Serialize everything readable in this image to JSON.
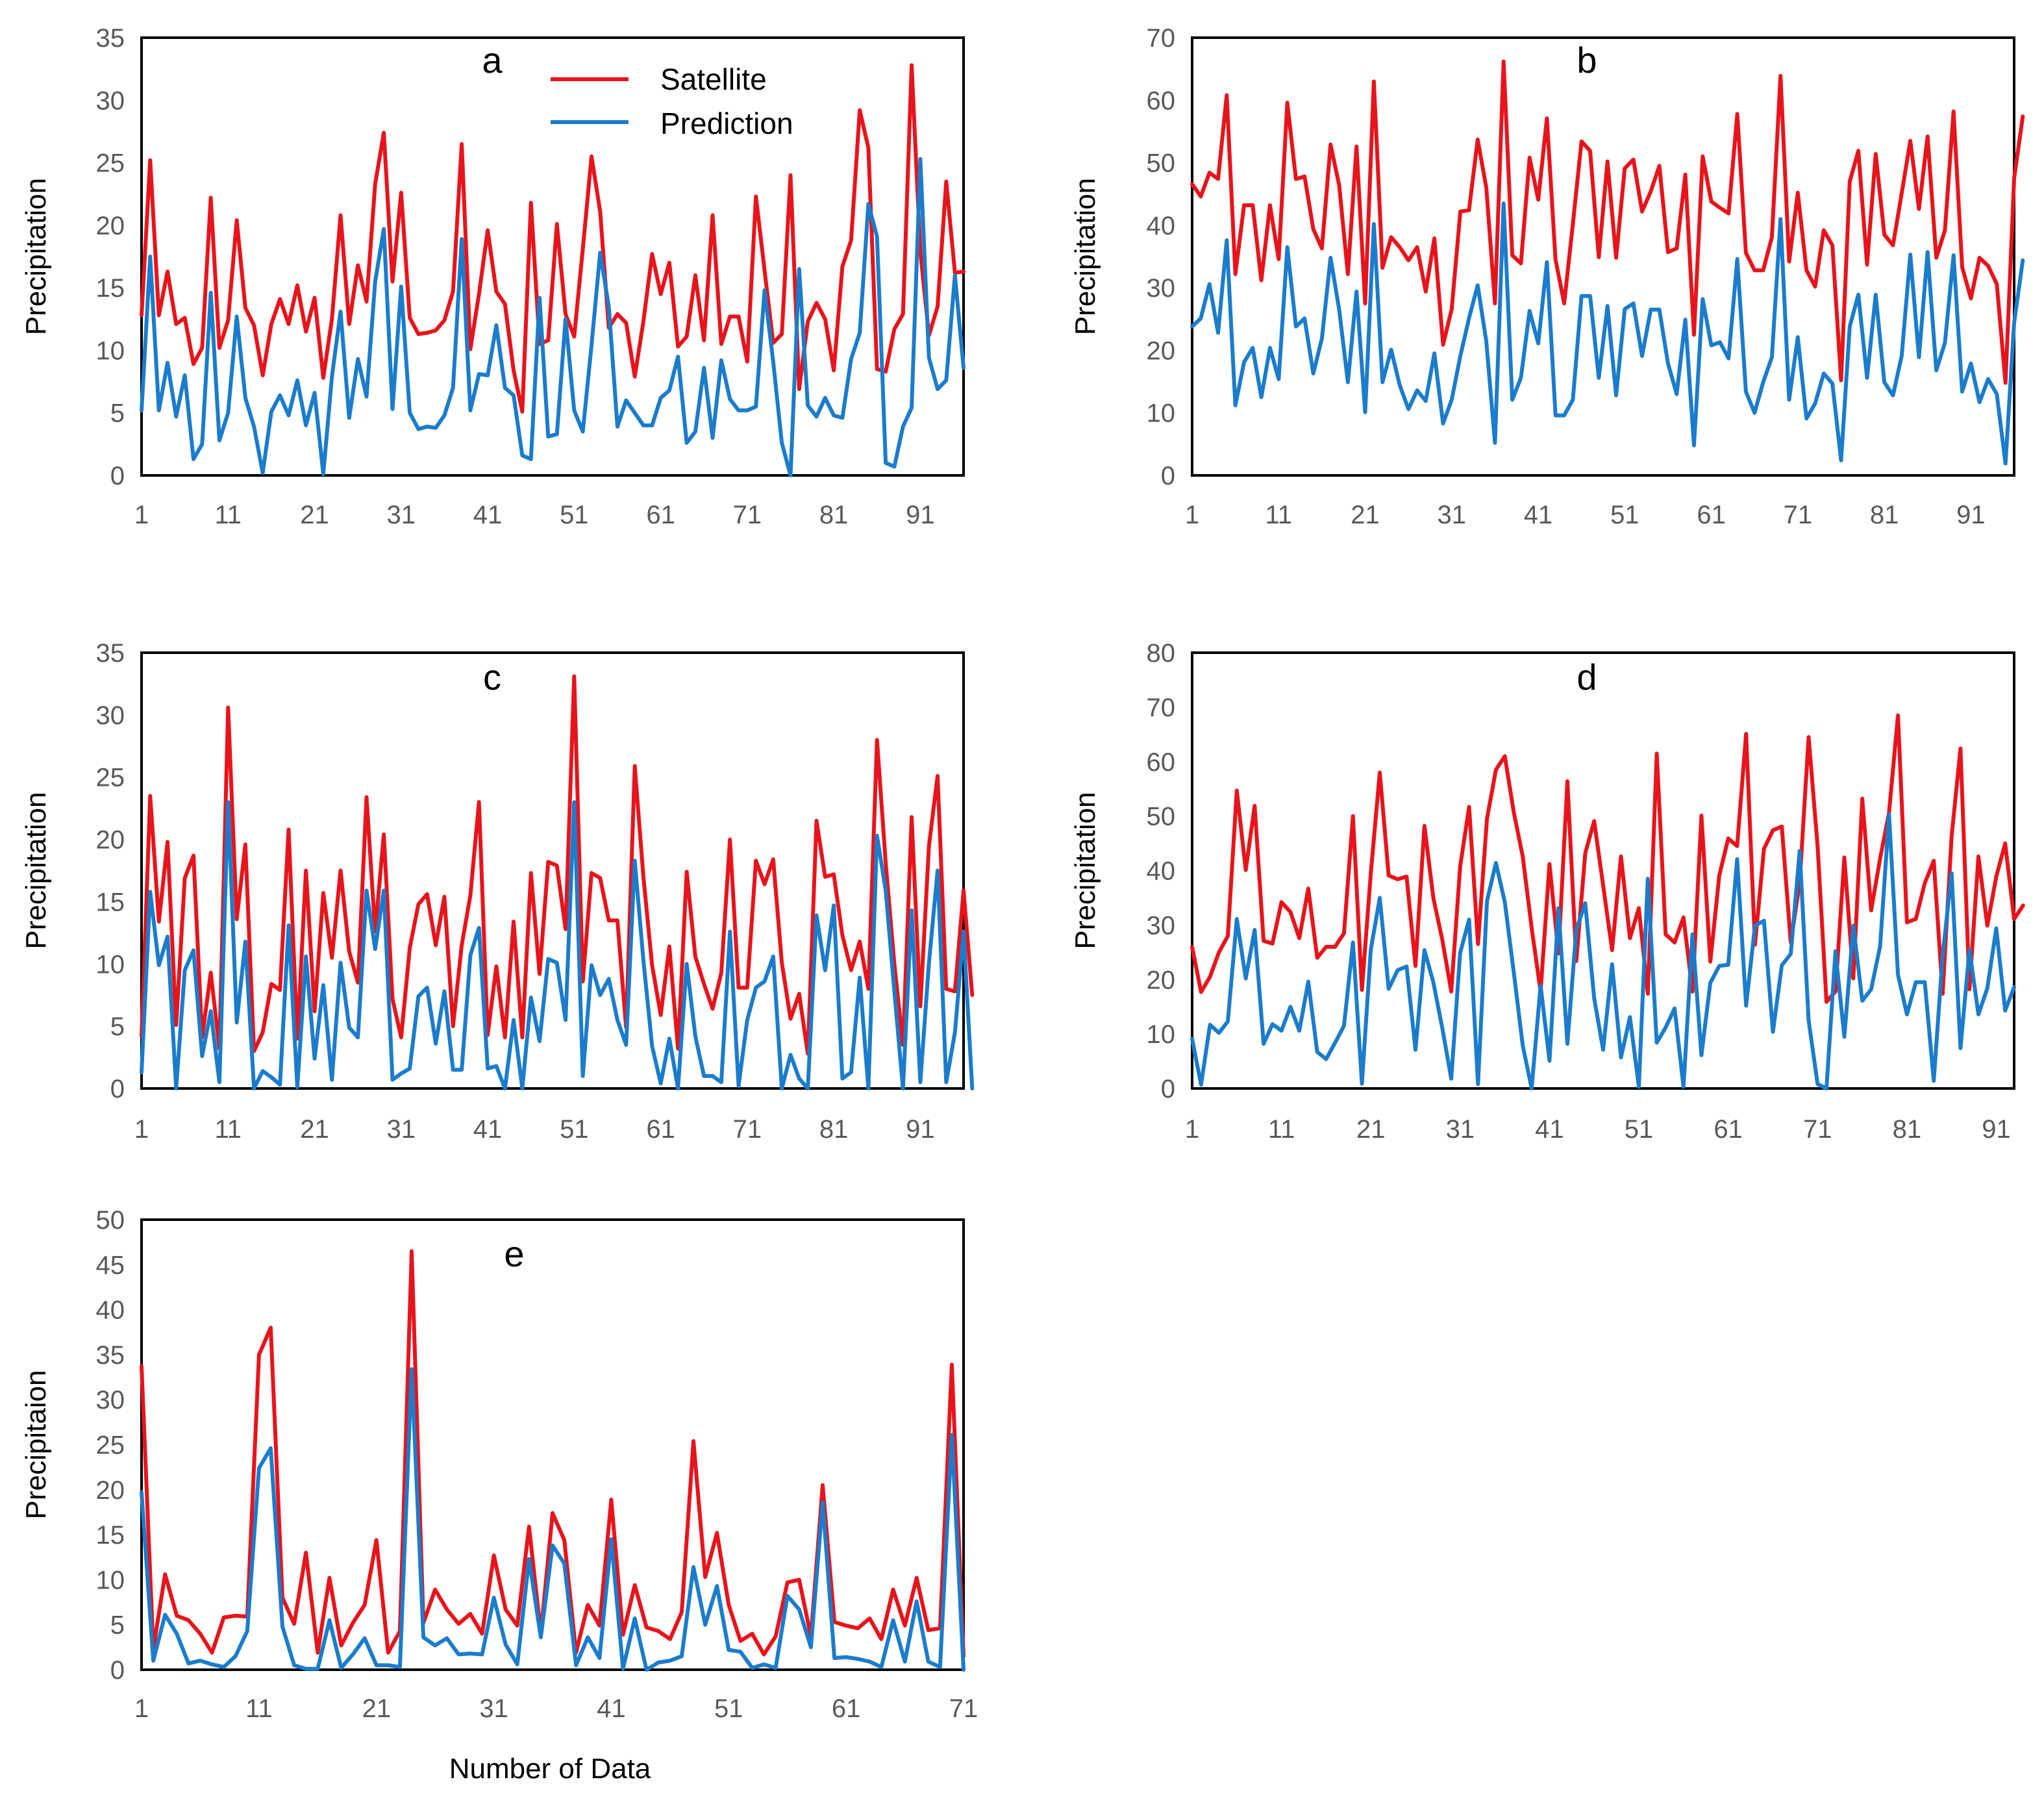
{
  "colors": {
    "satellite": "#e8141b",
    "prediction": "#1b7ccc",
    "tick": "#595959"
  },
  "legend": {
    "satellite": "Satellite",
    "prediction": "Prediction"
  },
  "x_axis_title": "Number of Data",
  "chart_data": [
    {
      "type": "line",
      "panel": "a",
      "ylabel": "Precipitation",
      "ylim": [
        0,
        35
      ],
      "yticks": [
        "0",
        "5",
        "10",
        "15",
        "20",
        "25",
        "30",
        "35"
      ],
      "xlim": [
        1,
        96
      ],
      "xticks": [
        "1",
        "11",
        "21",
        "31",
        "41",
        "51",
        "61",
        "71",
        "81",
        "91"
      ],
      "series": [
        {
          "name": "Satellite",
          "values": [
            12.8,
            25.2,
            12.8,
            16.3,
            12.1,
            12.6,
            8.9,
            10.2,
            22.2,
            10.2,
            12.4,
            20.4,
            13.4,
            12,
            8,
            12.1,
            14.1,
            12.1,
            15.2,
            11.5,
            14.2,
            7.8,
            12.5,
            20.8,
            12.1,
            16.8,
            13.9,
            23.3,
            27.4,
            15.5,
            22.6,
            12.6,
            11.3,
            11.4,
            11.6,
            12.4,
            14.7,
            26.5,
            10.1,
            14.5,
            19.6,
            14.7,
            13.7,
            8.4,
            5.1,
            21.8,
            10.5,
            10.8,
            20.1,
            12.9,
            11.1,
            18.1,
            25.5,
            21.1,
            11.8,
            12.9,
            12.2,
            7.9,
            12.3,
            17.7,
            14.5,
            17,
            10.3,
            11.1,
            16,
            10.8,
            20.8,
            10.5,
            12.7,
            12.7,
            9.1,
            22.3,
            16.4,
            10.6,
            11.3,
            24,
            6.9,
            12.3,
            13.8,
            12.5,
            8.4,
            16.7,
            18.8,
            29.2,
            26.2,
            8.5,
            8.3,
            11.7,
            12.9,
            32.8,
            17.9,
            11.2,
            13.5,
            23.5,
            16.2,
            16.3
          ]
        },
        {
          "name": "Prediction",
          "values": [
            5.2,
            17.5,
            5.2,
            9,
            4.7,
            8,
            1.3,
            2.5,
            14.6,
            2.8,
            5,
            12.7,
            6.2,
            3.9,
            0.2,
            5.1,
            6.4,
            4.8,
            7.6,
            4,
            6.6,
            0.1,
            7.9,
            13.1,
            4.6,
            9.3,
            6.3,
            15.5,
            19.7,
            5.3,
            15.1,
            5,
            3.7,
            3.9,
            3.8,
            4.8,
            7,
            18.9,
            5.2,
            8.1,
            8,
            12,
            7,
            6.4,
            1.6,
            1.3,
            14.2,
            3.1,
            3.3,
            12.5,
            5.2,
            3.5,
            10.4,
            17.8,
            13.5,
            3.9,
            6,
            5,
            4,
            4,
            6.2,
            6.8,
            9.5,
            2.6,
            3.5,
            8.6,
            3,
            9.2,
            6.1,
            5.2,
            5.2,
            5.5,
            14.8,
            9.1,
            2.6,
            0,
            16.5,
            5.6,
            4.7,
            6.2,
            4.8,
            4.6,
            9.3,
            11.4,
            21.7,
            19.1,
            1,
            0.7,
            3.9,
            5.4,
            25.3,
            9.4,
            6.9,
            7.6,
            16,
            8.6
          ]
        }
      ]
    },
    {
      "type": "line",
      "panel": "b",
      "ylabel": "Precipitation",
      "ylim": [
        0,
        70
      ],
      "yticks": [
        "0",
        "10",
        "20",
        "30",
        "40",
        "50",
        "60",
        "70"
      ],
      "xlim": [
        1,
        96
      ],
      "xticks": [
        "1",
        "11",
        "21",
        "31",
        "41",
        "51",
        "61",
        "71",
        "81",
        "91"
      ],
      "series": [
        {
          "name": "Satellite",
          "values": [
            46.6,
            44.6,
            48.4,
            47.4,
            60.8,
            32.2,
            43.2,
            43.2,
            31.2,
            43.2,
            34.6,
            59.6,
            47.4,
            47.8,
            39.4,
            36.3,
            52.9,
            46.4,
            32.2,
            52.6,
            27.5,
            63,
            33.2,
            38.1,
            36.5,
            34.4,
            36.5,
            29.4,
            37.9,
            20.9,
            26.6,
            42.2,
            42.4,
            53.7,
            46,
            27.5,
            66.2,
            35.2,
            33.9,
            50.8,
            44.1,
            57.1,
            34.5,
            27.5,
            40.2,
            53.4,
            51.9,
            34.9,
            50.2,
            34.8,
            49.1,
            50.5,
            42.2,
            45.4,
            49.5,
            35.7,
            36.3,
            48.1,
            22.5,
            51,
            43.8,
            42.8,
            41.9,
            57.8,
            35.6,
            32.8,
            32.8,
            38.1,
            63.9,
            34.2,
            45.2,
            32.8,
            30.2,
            39.2,
            36.8,
            15.2,
            47,
            51.9,
            33.7,
            51.4,
            38.5,
            36.8,
            45.1,
            53.5,
            42.6,
            54.2,
            34.8,
            39.2,
            58.2,
            33.3,
            28.3,
            34.8,
            33.5,
            30.6,
            14.8,
            47.5,
            57.4
          ]
        },
        {
          "name": "Prediction",
          "values": [
            23.8,
            25.1,
            30.6,
            22.8,
            37.6,
            11.2,
            18.1,
            20.4,
            12.5,
            20.4,
            15.4,
            36.5,
            23.8,
            25.1,
            16.3,
            21.9,
            34.8,
            26.5,
            14.9,
            29.4,
            10.1,
            40.2,
            14.9,
            20.1,
            14.4,
            10.6,
            13.6,
            11.9,
            19.5,
            8.3,
            12.1,
            19.1,
            25.1,
            30.4,
            21.4,
            5.2,
            43.5,
            12.1,
            15.6,
            26.3,
            21.1,
            34.1,
            9.6,
            9.6,
            12.1,
            28.7,
            28.7,
            15.6,
            27.1,
            12.8,
            26.6,
            27.5,
            19.1,
            26.5,
            26.5,
            17.9,
            13,
            24.9,
            4.8,
            28.2,
            20.8,
            21.3,
            18.7,
            34.6,
            13.4,
            10,
            14.9,
            18.9,
            41,
            12.1,
            22.1,
            9.1,
            11.5,
            16.3,
            14.7,
            2.4,
            23.8,
            28.9,
            15.6,
            28.9,
            14.9,
            12.8,
            19.1,
            35.3,
            18.9,
            35.7,
            16.8,
            21.2,
            35.2,
            13.4,
            17.9,
            11.7,
            15.4,
            13,
            1.9,
            24.4,
            34.4
          ]
        }
      ]
    },
    {
      "type": "line",
      "panel": "c",
      "ylabel": "Precipitation",
      "ylim": [
        0,
        35
      ],
      "yticks": [
        "0",
        "5",
        "10",
        "15",
        "20",
        "25",
        "30",
        "35"
      ],
      "xlim": [
        1,
        96
      ],
      "xticks": [
        "1",
        "11",
        "21",
        "31",
        "41",
        "51",
        "61",
        "71",
        "81",
        "91"
      ],
      "series": [
        {
          "name": "Satellite",
          "values": [
            4.2,
            23.5,
            13.4,
            19.8,
            5.1,
            16.9,
            18.7,
            4.1,
            9.3,
            3.2,
            30.6,
            13.6,
            19.6,
            3,
            4.5,
            8.4,
            7.9,
            20.8,
            4,
            17.5,
            6.2,
            15.7,
            10.5,
            17.5,
            11,
            8.5,
            23.4,
            12.6,
            20.4,
            7.2,
            4.1,
            11.3,
            14.8,
            15.6,
            11.5,
            15.4,
            5,
            11.5,
            15.5,
            23,
            4.3,
            9.8,
            4.1,
            13.4,
            4.1,
            17.3,
            9.2,
            18.2,
            17.9,
            12.8,
            33.1,
            8.6,
            17.3,
            16.9,
            13.5,
            13.5,
            4.9,
            25.9,
            17,
            9.9,
            5.9,
            11.4,
            3.2,
            17.4,
            10.6,
            8.4,
            6.4,
            9.3,
            20,
            8.1,
            8.1,
            18.3,
            16.4,
            18.4,
            10.1,
            5.6,
            7.6,
            2.8,
            21.5,
            17,
            17.2,
            12.3,
            9.5,
            11.8,
            8,
            28,
            18.1,
            10,
            3.5,
            21.8,
            6.6,
            19.5,
            25.1,
            8,
            7.8,
            15.9,
            7.5
          ]
        },
        {
          "name": "Prediction",
          "values": [
            1.3,
            15.8,
            9.9,
            12.2,
            0,
            9.5,
            11.1,
            2.6,
            6.2,
            0.5,
            23,
            5.3,
            11.8,
            0,
            1.4,
            0.9,
            0.3,
            13.1,
            0.1,
            10.6,
            2.4,
            8.3,
            0.7,
            10.1,
            4.9,
            4.1,
            15.9,
            11.2,
            15.9,
            0.7,
            1.2,
            1.6,
            7.4,
            8.1,
            3.6,
            7.8,
            1.5,
            1.5,
            10.7,
            12.9,
            1.6,
            1.8,
            0,
            5.5,
            0,
            7.3,
            3.8,
            10.4,
            10.1,
            5.5,
            23,
            1,
            9.9,
            7.5,
            8.8,
            5.5,
            3.5,
            18.3,
            10.3,
            3.4,
            0.4,
            4,
            0,
            10,
            4.2,
            1,
            1,
            0.5,
            12.6,
            0.2,
            5.5,
            8.1,
            8.6,
            10.6,
            0,
            2.7,
            0.8,
            0,
            13.9,
            9.5,
            14.7,
            0.8,
            1.3,
            8.9,
            0,
            20.3,
            15.9,
            7.8,
            0,
            14.3,
            0.5,
            10.1,
            17.5,
            0.5,
            4.5,
            12.6,
            0
          ]
        }
      ]
    },
    {
      "type": "line",
      "panel": "d",
      "ylabel": "Precipitation",
      "ylim": [
        0,
        80
      ],
      "yticks": [
        "0",
        "10",
        "20",
        "30",
        "40",
        "50",
        "60",
        "70",
        "80"
      ],
      "xlim": [
        1,
        93
      ],
      "xticks": [
        "1",
        "11",
        "21",
        "31",
        "41",
        "51",
        "61",
        "71",
        "81",
        "91"
      ],
      "series": [
        {
          "name": "Satellite",
          "values": [
            26,
            17.7,
            20.5,
            25,
            28,
            54.7,
            40.1,
            51.9,
            27.1,
            26.6,
            34.2,
            32.4,
            27.6,
            36.7,
            24,
            26,
            26,
            28.5,
            50,
            18.1,
            39.5,
            58,
            39.1,
            38.4,
            38.9,
            22.5,
            48.2,
            35,
            27.3,
            17.8,
            40.7,
            51.7,
            26.5,
            49.5,
            58.5,
            61,
            50.7,
            42.6,
            29.5,
            17.8,
            41.2,
            24.8,
            56.4,
            23.4,
            43.2,
            49.1,
            37.3,
            25.4,
            42.6,
            27.6,
            33.1,
            17.4,
            61.5,
            28.3,
            26.8,
            31.4,
            17.8,
            50.1,
            23.3,
            39.1,
            45.9,
            44.5,
            65.1,
            26.4,
            44,
            47.4,
            48.1,
            26.8,
            37.8,
            64.5,
            44.5,
            15.9,
            17.8,
            42.4,
            20.2,
            53.2,
            32.7,
            42.2,
            50.6,
            68.5,
            30.5,
            31.1,
            37.7,
            41.8,
            17.4,
            46.3,
            62.4,
            18.2,
            42.6,
            29.9,
            38.9,
            45,
            31.1,
            33.6
          ]
        },
        {
          "name": "Prediction",
          "values": [
            9.1,
            0.7,
            11.7,
            10.2,
            12.3,
            31.1,
            20.2,
            29.1,
            8.2,
            11.8,
            10.6,
            15,
            10.6,
            19.6,
            6.7,
            5.4,
            8.4,
            11.5,
            26.8,
            0.9,
            25.5,
            35,
            18.3,
            21.7,
            22.4,
            7.1,
            25.4,
            19.5,
            11.1,
            1.8,
            24.9,
            31,
            0.8,
            34.4,
            41.4,
            34.2,
            21.3,
            7.9,
            0,
            18.9,
            5.1,
            33.1,
            8.2,
            29.2,
            34,
            16.6,
            7.1,
            22.8,
            5.7,
            13.1,
            0.3,
            38.5,
            8.4,
            11.2,
            14.7,
            0.3,
            28.3,
            6.1,
            19.4,
            22.5,
            22.7,
            42.1,
            15.2,
            29.9,
            30.8,
            10.4,
            22.6,
            24.7,
            43.6,
            12.5,
            0.8,
            0,
            25.2,
            9.5,
            29.9,
            16.1,
            18.2,
            26.1,
            50.3,
            20.9,
            13.6,
            19.5,
            19.5,
            1.4,
            24.4,
            39.5,
            7.4,
            25.5,
            13.6,
            18.4,
            29.4,
            14.3,
            18.6
          ]
        }
      ]
    },
    {
      "type": "line",
      "panel": "e",
      "ylabel": "Precipitaion",
      "ylim": [
        0,
        50
      ],
      "yticks": [
        "0",
        "5",
        "10",
        "15",
        "20",
        "25",
        "30",
        "35",
        "40",
        "45",
        "50"
      ],
      "xlim": [
        1,
        71
      ],
      "xticks": [
        "1",
        "11",
        "21",
        "31",
        "41",
        "51",
        "61",
        "71"
      ],
      "series": [
        {
          "name": "Satellite",
          "values": [
            33.7,
            2.3,
            10.6,
            6,
            5.5,
            4,
            1.9,
            5.8,
            6,
            5.9,
            35,
            38,
            8,
            5.1,
            13,
            1.9,
            10.2,
            2.7,
            5.2,
            7.2,
            14.4,
            1.9,
            4.3,
            46.5,
            5.2,
            8.9,
            6.7,
            5.1,
            6.2,
            4,
            12.7,
            6.7,
            4.9,
            15.9,
            4,
            17.4,
            14.4,
            1.9,
            7.2,
            4.9,
            18.9,
            3.9,
            9.4,
            4.7,
            4.3,
            3.4,
            6.4,
            25.4,
            10.3,
            15.2,
            7.2,
            3.2,
            4,
            1.7,
            3.7,
            9.7,
            10,
            3.7,
            20.5,
            5.3,
            4.9,
            4.6,
            5.7,
            3.4,
            8.9,
            4.9,
            10.2,
            4.4,
            4.6,
            33.9,
            1.5
          ]
        },
        {
          "name": "Prediction",
          "values": [
            19.7,
            1,
            6.1,
            4,
            0.7,
            1,
            0.6,
            0.3,
            1.5,
            4.3,
            22.4,
            24.6,
            4.8,
            0.5,
            0.1,
            0.1,
            5.5,
            0.2,
            1.7,
            3.5,
            0.5,
            0.5,
            0.3,
            33.4,
            3.6,
            2.7,
            3.5,
            1.7,
            1.8,
            1.7,
            8,
            2.8,
            0.6,
            12.3,
            3.6,
            13.8,
            11.8,
            0.5,
            3.6,
            1.3,
            14.5,
            0.1,
            5.7,
            0,
            0.8,
            1,
            1.5,
            11.4,
            5,
            9.3,
            2.2,
            2,
            0.2,
            0.6,
            0.2,
            8.2,
            6.7,
            2.5,
            18.6,
            1.3,
            1.4,
            1.2,
            0.9,
            0.3,
            5.5,
            0.9,
            7.6,
            0.9,
            0.3,
            26.1,
            0
          ]
        }
      ]
    }
  ]
}
